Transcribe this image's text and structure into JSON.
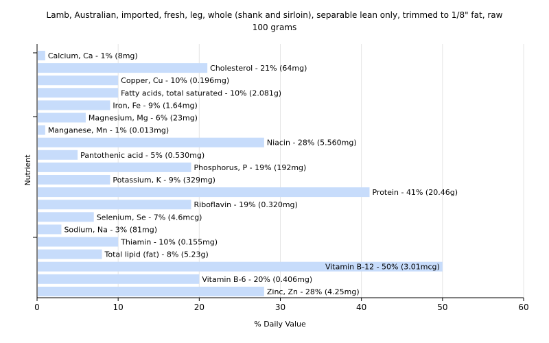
{
  "chart_data": {
    "type": "bar",
    "orientation": "horizontal",
    "title": "Lamb, Australian, imported, fresh, leg, whole (shank and sirloin), separable lean only, trimmed to 1/8\" fat, raw",
    "subtitle": "100 grams",
    "xlabel": "% Daily Value",
    "ylabel": "Nutrient",
    "xlim": [
      0,
      60
    ],
    "xticks": [
      0,
      10,
      20,
      30,
      40,
      50,
      60
    ],
    "grid": true,
    "bar_color": "#c7dcfb",
    "categories": [
      "Calcium, Ca",
      "Cholesterol",
      "Copper, Cu",
      "Fatty acids, total saturated",
      "Iron, Fe",
      "Magnesium, Mg",
      "Manganese, Mn",
      "Niacin",
      "Pantothenic acid",
      "Phosphorus, P",
      "Potassium, K",
      "Protein",
      "Riboflavin",
      "Selenium, Se",
      "Sodium, Na",
      "Thiamin",
      "Total lipid (fat)",
      "Vitamin B-12",
      "Vitamin B-6",
      "Zinc, Zn"
    ],
    "values": [
      1,
      21,
      10,
      10,
      9,
      6,
      1,
      28,
      5,
      19,
      9,
      41,
      19,
      7,
      3,
      10,
      8,
      50,
      20,
      28
    ],
    "labels": [
      "Calcium, Ca - 1% (8mg)",
      "Cholesterol - 21% (64mg)",
      "Copper, Cu - 10% (0.196mg)",
      "Fatty acids, total saturated - 10% (2.081g)",
      "Iron, Fe - 9% (1.64mg)",
      "Magnesium, Mg - 6% (23mg)",
      "Manganese, Mn - 1% (0.013mg)",
      "Niacin - 28% (5.560mg)",
      "Pantothenic acid - 5% (0.530mg)",
      "Phosphorus, P - 19% (192mg)",
      "Potassium, K - 9% (329mg)",
      "Protein - 41% (20.46g)",
      "Riboflavin - 19% (0.320mg)",
      "Selenium, Se - 7% (4.6mcg)",
      "Sodium, Na - 3% (81mg)",
      "Thiamin - 10% (0.155mg)",
      "Total lipid (fat) - 8% (5.23g)",
      "Vitamin B-12 - 50% (3.01mcg)",
      "Vitamin B-6 - 20% (0.406mg)",
      "Zinc, Zn - 28% (4.25mg)"
    ]
  }
}
